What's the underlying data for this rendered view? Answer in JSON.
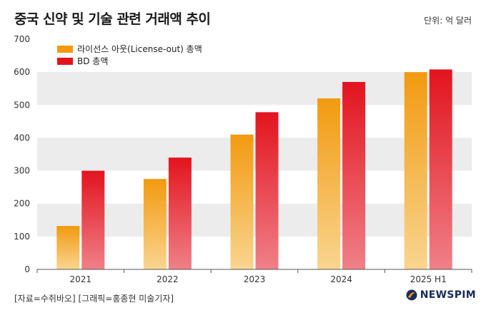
{
  "header": {
    "title": "중국 신약 및 기술 관련 거래액 추이",
    "unit": "단위: 억 달러"
  },
  "footer": {
    "source": "[자료=수쥐바오] [그래픽=홍종현 미술기자]",
    "brand": "NEWSPIM"
  },
  "colors": {
    "series1_top": "#f29a10",
    "series1_bottom": "#f9d590",
    "series2_top": "#e2141e",
    "series2_bottom": "#f08088",
    "band": "#ececec",
    "logo_accent": "#f3a21b",
    "logo_dark": "#1a2a5a"
  },
  "chart_data": {
    "type": "bar",
    "categories": [
      "2021",
      "2022",
      "2023",
      "2024",
      "2025 H1"
    ],
    "series": [
      {
        "name": "라이선스 아웃(License-out) 총액",
        "values": [
          132,
          275,
          410,
          520,
          600
        ]
      },
      {
        "name": "BD 총액",
        "values": [
          300,
          340,
          478,
          570,
          608
        ]
      }
    ],
    "ylim": [
      0,
      700
    ],
    "yticks": [
      "0",
      "100",
      "200",
      "300",
      "400",
      "500",
      "600",
      "700"
    ],
    "grid": "alternating horizontal bands",
    "legend_position": "top-left"
  }
}
